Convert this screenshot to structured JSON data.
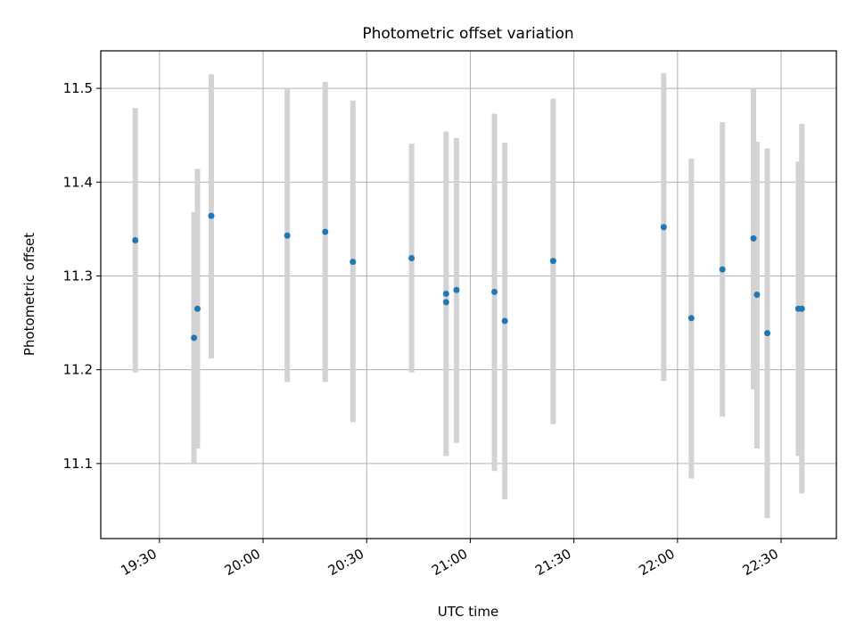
{
  "chart_data": {
    "type": "scatter",
    "title": "Photometric offset variation",
    "xlabel": "UTC time",
    "ylabel": "Photometric offset",
    "x_axis_kind": "time",
    "xlim": [
      "19:13",
      "22:46"
    ],
    "ylim": [
      11.02,
      11.54
    ],
    "x_ticks": [
      "19:30",
      "20:00",
      "20:30",
      "21:00",
      "21:30",
      "22:00",
      "22:30"
    ],
    "y_ticks": [
      11.1,
      11.2,
      11.3,
      11.4,
      11.5
    ],
    "grid": true,
    "legend": "none",
    "point_color": "#1f77b4",
    "errorbar_color": "#d3d3d3",
    "points": [
      {
        "x": "19:23",
        "y": 11.338,
        "y_low": 11.197,
        "y_high": 11.479
      },
      {
        "x": "19:40",
        "y": 11.234,
        "y_low": 11.1,
        "y_high": 11.368
      },
      {
        "x": "19:41",
        "y": 11.265,
        "y_low": 11.116,
        "y_high": 11.414
      },
      {
        "x": "19:45",
        "y": 11.364,
        "y_low": 11.212,
        "y_high": 11.515
      },
      {
        "x": "20:07",
        "y": 11.343,
        "y_low": 11.187,
        "y_high": 11.5
      },
      {
        "x": "20:18",
        "y": 11.347,
        "y_low": 11.187,
        "y_high": 11.507
      },
      {
        "x": "20:26",
        "y": 11.315,
        "y_low": 11.144,
        "y_high": 11.487
      },
      {
        "x": "20:43",
        "y": 11.319,
        "y_low": 11.197,
        "y_high": 11.441
      },
      {
        "x": "20:53",
        "y": 11.281,
        "y_low": 11.108,
        "y_high": 11.454
      },
      {
        "x": "20:53",
        "y": 11.272,
        "y_low": 11.108,
        "y_high": 11.436
      },
      {
        "x": "20:56",
        "y": 11.285,
        "y_low": 11.122,
        "y_high": 11.447
      },
      {
        "x": "21:07",
        "y": 11.283,
        "y_low": 11.092,
        "y_high": 11.473
      },
      {
        "x": "21:10",
        "y": 11.252,
        "y_low": 11.062,
        "y_high": 11.442
      },
      {
        "x": "21:24",
        "y": 11.316,
        "y_low": 11.142,
        "y_high": 11.489
      },
      {
        "x": "21:56",
        "y": 11.352,
        "y_low": 11.188,
        "y_high": 11.516
      },
      {
        "x": "22:04",
        "y": 11.255,
        "y_low": 11.084,
        "y_high": 11.425
      },
      {
        "x": "22:13",
        "y": 11.307,
        "y_low": 11.15,
        "y_high": 11.464
      },
      {
        "x": "22:22",
        "y": 11.34,
        "y_low": 11.179,
        "y_high": 11.5
      },
      {
        "x": "22:23",
        "y": 11.28,
        "y_low": 11.116,
        "y_high": 11.443
      },
      {
        "x": "22:26",
        "y": 11.239,
        "y_low": 11.042,
        "y_high": 11.436
      },
      {
        "x": "22:35",
        "y": 11.265,
        "y_low": 11.108,
        "y_high": 11.422
      },
      {
        "x": "22:36",
        "y": 11.265,
        "y_low": 11.068,
        "y_high": 11.462
      }
    ]
  }
}
